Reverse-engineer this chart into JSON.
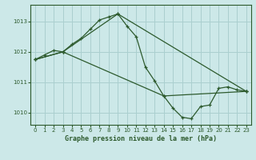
{
  "title": "Graphe pression niveau de la mer (hPa)",
  "background_color": "#cce8e8",
  "grid_color": "#aacfcf",
  "line_color": "#2d5a2d",
  "xlim": [
    -0.5,
    23.5
  ],
  "ylim": [
    1009.6,
    1013.55
  ],
  "xticks": [
    0,
    1,
    2,
    3,
    4,
    5,
    6,
    7,
    8,
    9,
    10,
    11,
    12,
    13,
    14,
    15,
    16,
    17,
    18,
    19,
    20,
    21,
    22,
    23
  ],
  "yticks": [
    1010,
    1011,
    1012,
    1013
  ],
  "series1_x": [
    0,
    1,
    2,
    3,
    4,
    5,
    6,
    7,
    8,
    9,
    10,
    11,
    12,
    13,
    14,
    15,
    16,
    17,
    18,
    19,
    20,
    21,
    22,
    23
  ],
  "series1_y": [
    1011.75,
    1011.9,
    1012.05,
    1012.0,
    1012.25,
    1012.45,
    1012.75,
    1013.05,
    1013.15,
    1013.25,
    1012.85,
    1012.5,
    1011.5,
    1011.05,
    1010.55,
    1010.15,
    1009.85,
    1009.8,
    1010.2,
    1010.25,
    1010.8,
    1010.85,
    1010.75,
    1010.7
  ],
  "series2_x": [
    0,
    3,
    9,
    23
  ],
  "series2_y": [
    1011.75,
    1012.0,
    1013.25,
    1010.7
  ],
  "series3_x": [
    0,
    3,
    14,
    23
  ],
  "series3_y": [
    1011.75,
    1012.0,
    1010.55,
    1010.7
  ]
}
